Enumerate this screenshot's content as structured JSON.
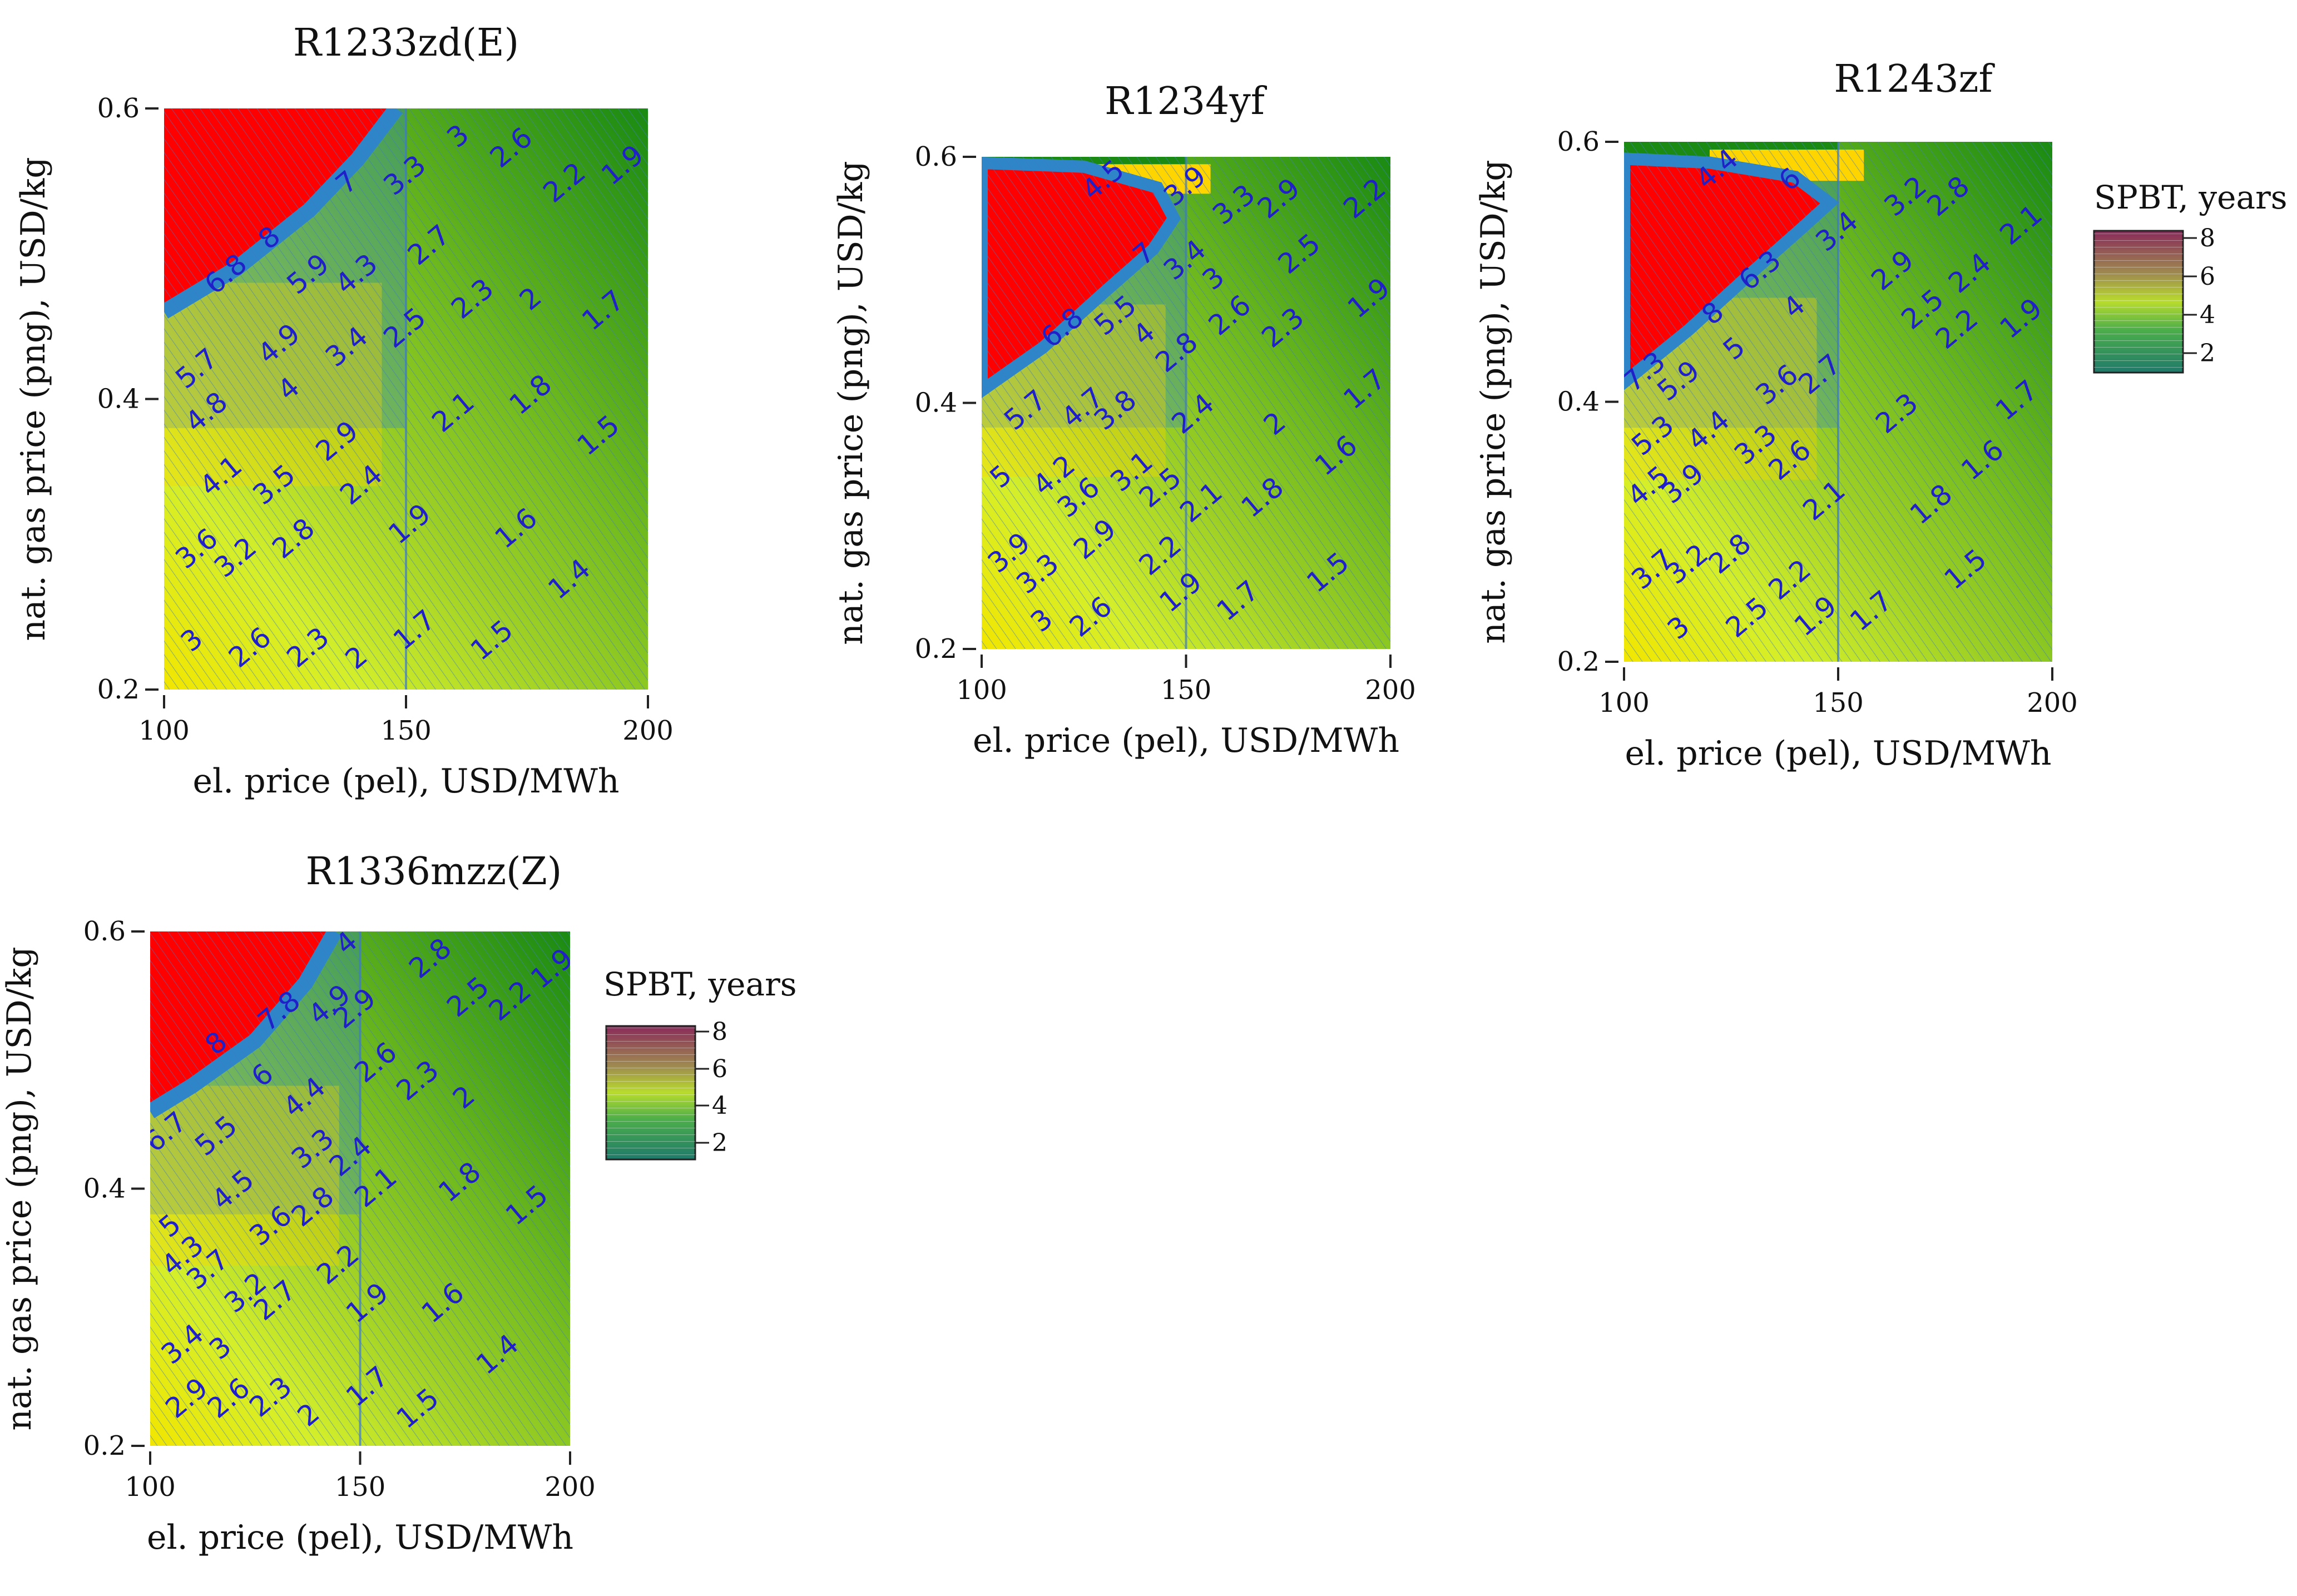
{
  "figure": {
    "colors": {
      "red_region": "#ff0000",
      "blue_band": "#2e86c8",
      "yellow": "#ffd500",
      "lime": "#d4ef2a",
      "green_mid": "#86c322",
      "green_dark": "#1a8a12",
      "contour_label": "#2020c8",
      "contour_line": "#3c78c8"
    }
  },
  "chart_data": [
    {
      "type": "contour",
      "title": "R1233zd(E)",
      "xlabel": "el. price (pel), USD/MWh",
      "ylabel": "nat. gas price (png), USD/kg",
      "xlim": [
        100,
        200
      ],
      "ylim": [
        0.2,
        0.6
      ],
      "xticks": [
        "100",
        "150",
        "200"
      ],
      "yticks": [
        "0.2",
        "0.4",
        "0.6"
      ],
      "red_boundary": [
        [
          100,
          0.46
        ],
        [
          115,
          0.49
        ],
        [
          130,
          0.53
        ],
        [
          140,
          0.565
        ],
        [
          148,
          0.6
        ]
      ],
      "contour_labels": [
        {
          "text": "7",
          "x": 138,
          "y": 0.548
        },
        {
          "text": "8",
          "x": 122,
          "y": 0.51
        },
        {
          "text": "6.8",
          "x": 113,
          "y": 0.485
        },
        {
          "text": "5.9",
          "x": 130,
          "y": 0.485
        },
        {
          "text": "4.3",
          "x": 140,
          "y": 0.485
        },
        {
          "text": "5.7",
          "x": 107,
          "y": 0.42
        },
        {
          "text": "4.9",
          "x": 124,
          "y": 0.437
        },
        {
          "text": "3.4",
          "x": 138,
          "y": 0.435
        },
        {
          "text": "4.8",
          "x": 109,
          "y": 0.39
        },
        {
          "text": "4",
          "x": 126,
          "y": 0.406
        },
        {
          "text": "4.1",
          "x": 112,
          "y": 0.346
        },
        {
          "text": "3.5",
          "x": 123,
          "y": 0.34
        },
        {
          "text": "2.9",
          "x": 136,
          "y": 0.37
        },
        {
          "text": "3.6",
          "x": 107,
          "y": 0.296
        },
        {
          "text": "3.2",
          "x": 115,
          "y": 0.29
        },
        {
          "text": "2.8",
          "x": 127,
          "y": 0.303
        },
        {
          "text": "2.4",
          "x": 141,
          "y": 0.34
        },
        {
          "text": "3",
          "x": 106,
          "y": 0.233
        },
        {
          "text": "2.6",
          "x": 118,
          "y": 0.228
        },
        {
          "text": "2.3",
          "x": 130,
          "y": 0.228
        },
        {
          "text": "2",
          "x": 140,
          "y": 0.221
        },
        {
          "text": "3.3",
          "x": 150,
          "y": 0.553
        },
        {
          "text": "3",
          "x": 161,
          "y": 0.58
        },
        {
          "text": "2.6",
          "x": 172,
          "y": 0.572
        },
        {
          "text": "2.2",
          "x": 183,
          "y": 0.548
        },
        {
          "text": "1.9",
          "x": 195,
          "y": 0.56
        },
        {
          "text": "2.7",
          "x": 155,
          "y": 0.505
        },
        {
          "text": "2.3",
          "x": 164,
          "y": 0.468
        },
        {
          "text": "2",
          "x": 176,
          "y": 0.468
        },
        {
          "text": "1.7",
          "x": 191,
          "y": 0.46
        },
        {
          "text": "2.5",
          "x": 150,
          "y": 0.448
        },
        {
          "text": "2.1",
          "x": 160,
          "y": 0.39
        },
        {
          "text": "1.8",
          "x": 176,
          "y": 0.402
        },
        {
          "text": "1.5",
          "x": 190,
          "y": 0.374
        },
        {
          "text": "1.9",
          "x": 151,
          "y": 0.313
        },
        {
          "text": "1.6",
          "x": 173,
          "y": 0.31
        },
        {
          "text": "1.4",
          "x": 184,
          "y": 0.275
        },
        {
          "text": "1.7",
          "x": 152,
          "y": 0.24
        },
        {
          "text": "1.5",
          "x": 168,
          "y": 0.233
        }
      ]
    },
    {
      "type": "contour",
      "title": "R1234yf",
      "xlabel": "el. price (pel), USD/MWh",
      "ylabel": "nat. gas price (png), USD/kg",
      "xlim": [
        100,
        200
      ],
      "ylim": [
        0.2,
        0.6
      ],
      "xticks": [
        "100",
        "150",
        "200"
      ],
      "yticks": [
        "0.2",
        "0.4",
        "0.6"
      ],
      "red_boundary": [
        [
          100,
          0.41
        ],
        [
          115,
          0.445
        ],
        [
          130,
          0.49
        ],
        [
          142,
          0.525
        ],
        [
          147,
          0.55
        ],
        [
          143,
          0.575
        ],
        [
          125,
          0.592
        ],
        [
          100,
          0.595
        ]
      ],
      "contour_labels": [
        {
          "text": "4.5",
          "x": 130,
          "y": 0.58
        },
        {
          "text": "3.9",
          "x": 150,
          "y": 0.575
        },
        {
          "text": "7",
          "x": 140,
          "y": 0.52
        },
        {
          "text": "3.4",
          "x": 150,
          "y": 0.515
        },
        {
          "text": "6.8",
          "x": 120,
          "y": 0.46
        },
        {
          "text": "5.5",
          "x": 133,
          "y": 0.47
        },
        {
          "text": "4",
          "x": 140,
          "y": 0.455
        },
        {
          "text": "2.8",
          "x": 148,
          "y": 0.44
        },
        {
          "text": "5.7",
          "x": 111,
          "y": 0.393
        },
        {
          "text": "4.7",
          "x": 125,
          "y": 0.395
        },
        {
          "text": "3.8",
          "x": 133,
          "y": 0.393
        },
        {
          "text": "5",
          "x": 105,
          "y": 0.339
        },
        {
          "text": "4.2",
          "x": 118,
          "y": 0.34
        },
        {
          "text": "3.1",
          "x": 137,
          "y": 0.343
        },
        {
          "text": "3.6",
          "x": 124,
          "y": 0.322
        },
        {
          "text": "2.5",
          "x": 144,
          "y": 0.33
        },
        {
          "text": "3.9",
          "x": 107,
          "y": 0.277
        },
        {
          "text": "3.3",
          "x": 114,
          "y": 0.26
        },
        {
          "text": "2.9",
          "x": 128,
          "y": 0.288
        },
        {
          "text": "2.2",
          "x": 144,
          "y": 0.275
        },
        {
          "text": "3",
          "x": 115,
          "y": 0.222
        },
        {
          "text": "2.6",
          "x": 127,
          "y": 0.225
        },
        {
          "text": "1.9",
          "x": 149,
          "y": 0.245
        },
        {
          "text": "3.3",
          "x": 162,
          "y": 0.56
        },
        {
          "text": "2.9",
          "x": 173,
          "y": 0.565
        },
        {
          "text": "2.2",
          "x": 194,
          "y": 0.565
        },
        {
          "text": "3",
          "x": 157,
          "y": 0.5
        },
        {
          "text": "2.5",
          "x": 178,
          "y": 0.52
        },
        {
          "text": "2.6",
          "x": 161,
          "y": 0.47
        },
        {
          "text": "2.3",
          "x": 174,
          "y": 0.46
        },
        {
          "text": "1.9",
          "x": 195,
          "y": 0.484
        },
        {
          "text": "2.4",
          "x": 152,
          "y": 0.39
        },
        {
          "text": "2",
          "x": 172,
          "y": 0.382
        },
        {
          "text": "1.7",
          "x": 194,
          "y": 0.41
        },
        {
          "text": "2.1",
          "x": 154,
          "y": 0.318
        },
        {
          "text": "1.8",
          "x": 169,
          "y": 0.322
        },
        {
          "text": "1.6",
          "x": 187,
          "y": 0.356
        },
        {
          "text": "1.7",
          "x": 163,
          "y": 0.238
        },
        {
          "text": "1.5",
          "x": 185,
          "y": 0.261
        }
      ]
    },
    {
      "type": "contour",
      "title": "R1243zf",
      "xlabel": "el. price (pel), USD/MWh",
      "ylabel": "nat. gas price (png), USD/kg",
      "xlim": [
        100,
        200
      ],
      "ylim": [
        0.2,
        0.6
      ],
      "xticks": [
        "100",
        "150",
        "200"
      ],
      "yticks": [
        "0.2",
        "0.4",
        "0.6"
      ],
      "red_boundary": [
        [
          100,
          0.415
        ],
        [
          115,
          0.455
        ],
        [
          130,
          0.5
        ],
        [
          142,
          0.535
        ],
        [
          148,
          0.553
        ],
        [
          140,
          0.573
        ],
        [
          120,
          0.584
        ],
        [
          100,
          0.587
        ]
      ],
      "contour_labels": [
        {
          "text": "4.4",
          "x": 122,
          "y": 0.578
        },
        {
          "text": "6",
          "x": 139,
          "y": 0.57
        },
        {
          "text": "3.4",
          "x": 150,
          "y": 0.53
        },
        {
          "text": "8",
          "x": 121,
          "y": 0.467
        },
        {
          "text": "6.3",
          "x": 132,
          "y": 0.5
        },
        {
          "text": "4",
          "x": 140,
          "y": 0.472
        },
        {
          "text": "7.3",
          "x": 105,
          "y": 0.422
        },
        {
          "text": "5.9",
          "x": 113,
          "y": 0.415
        },
        {
          "text": "5",
          "x": 126,
          "y": 0.44
        },
        {
          "text": "3.6",
          "x": 136,
          "y": 0.412
        },
        {
          "text": "2.7",
          "x": 146,
          "y": 0.42
        },
        {
          "text": "5.3",
          "x": 107,
          "y": 0.373
        },
        {
          "text": "4.4",
          "x": 120,
          "y": 0.377
        },
        {
          "text": "3.3",
          "x": 131,
          "y": 0.366
        },
        {
          "text": "4.5",
          "x": 106,
          "y": 0.334
        },
        {
          "text": "3.9",
          "x": 114,
          "y": 0.336
        },
        {
          "text": "2.6",
          "x": 139,
          "y": 0.354
        },
        {
          "text": "2.1",
          "x": 147,
          "y": 0.323
        },
        {
          "text": "3.7",
          "x": 107,
          "y": 0.27
        },
        {
          "text": "3.2",
          "x": 115,
          "y": 0.274
        },
        {
          "text": "2.8",
          "x": 125,
          "y": 0.282
        },
        {
          "text": "2.2",
          "x": 139,
          "y": 0.262
        },
        {
          "text": "3",
          "x": 113,
          "y": 0.225
        },
        {
          "text": "2.5",
          "x": 129,
          "y": 0.233
        },
        {
          "text": "1.9",
          "x": 145,
          "y": 0.234
        },
        {
          "text": "3.2",
          "x": 166,
          "y": 0.557
        },
        {
          "text": "2.8",
          "x": 176,
          "y": 0.557
        },
        {
          "text": "2.1",
          "x": 193,
          "y": 0.535
        },
        {
          "text": "2.9",
          "x": 163,
          "y": 0.5
        },
        {
          "text": "2.4",
          "x": 181,
          "y": 0.498
        },
        {
          "text": "1.9",
          "x": 193,
          "y": 0.463
        },
        {
          "text": "2.5",
          "x": 170,
          "y": 0.47
        },
        {
          "text": "2.2",
          "x": 178,
          "y": 0.455
        },
        {
          "text": "2.3",
          "x": 164,
          "y": 0.39
        },
        {
          "text": "1.7",
          "x": 192,
          "y": 0.4
        },
        {
          "text": "1.6",
          "x": 184,
          "y": 0.354
        },
        {
          "text": "1.8",
          "x": 172,
          "y": 0.32
        },
        {
          "text": "1.7",
          "x": 158,
          "y": 0.238
        },
        {
          "text": "1.5",
          "x": 180,
          "y": 0.27
        }
      ]
    },
    {
      "type": "contour",
      "title": "R1336mzz(Z)",
      "xlabel": "el. price (pel), USD/MWh",
      "ylabel": "nat. gas price (png), USD/kg",
      "xlim": [
        100,
        200
      ],
      "ylim": [
        0.2,
        0.6
      ],
      "xticks": [
        "100",
        "150",
        "200"
      ],
      "yticks": [
        "0.2",
        "0.4",
        "0.6"
      ],
      "red_boundary": [
        [
          100,
          0.46
        ],
        [
          110,
          0.48
        ],
        [
          125,
          0.515
        ],
        [
          137,
          0.56
        ],
        [
          144,
          0.6
        ]
      ],
      "contour_labels": [
        {
          "text": "4",
          "x": 147,
          "y": 0.59
        },
        {
          "text": "7.8",
          "x": 131,
          "y": 0.537
        },
        {
          "text": "4.9",
          "x": 143,
          "y": 0.542
        },
        {
          "text": "2.9",
          "x": 149,
          "y": 0.539
        },
        {
          "text": "8",
          "x": 116,
          "y": 0.512
        },
        {
          "text": "6",
          "x": 127,
          "y": 0.487
        },
        {
          "text": "4.4",
          "x": 137,
          "y": 0.47
        },
        {
          "text": "2.6",
          "x": 154,
          "y": 0.497
        },
        {
          "text": "6.7",
          "x": 104,
          "y": 0.443
        },
        {
          "text": "5.5",
          "x": 116,
          "y": 0.44
        },
        {
          "text": "3.3",
          "x": 139,
          "y": 0.43
        },
        {
          "text": "4.5",
          "x": 120,
          "y": 0.398
        },
        {
          "text": "5",
          "x": 105,
          "y": 0.37
        },
        {
          "text": "3.6",
          "x": 129,
          "y": 0.37
        },
        {
          "text": "2.8",
          "x": 139,
          "y": 0.385
        },
        {
          "text": "2.4",
          "x": 148,
          "y": 0.424
        },
        {
          "text": "4.3",
          "x": 108,
          "y": 0.347
        },
        {
          "text": "3.7",
          "x": 114,
          "y": 0.336
        },
        {
          "text": "3.2",
          "x": 123,
          "y": 0.318
        },
        {
          "text": "2.7",
          "x": 130,
          "y": 0.312
        },
        {
          "text": "2.2",
          "x": 145,
          "y": 0.34
        },
        {
          "text": "3.4",
          "x": 108,
          "y": 0.278
        },
        {
          "text": "3",
          "x": 117,
          "y": 0.275
        },
        {
          "text": "2.9",
          "x": 109,
          "y": 0.236
        },
        {
          "text": "2.6",
          "x": 119,
          "y": 0.236
        },
        {
          "text": "2.3",
          "x": 129,
          "y": 0.237
        },
        {
          "text": "2",
          "x": 138,
          "y": 0.223
        },
        {
          "text": "2.8",
          "x": 167,
          "y": 0.578
        },
        {
          "text": "2.5",
          "x": 176,
          "y": 0.548
        },
        {
          "text": "2.2",
          "x": 186,
          "y": 0.545
        },
        {
          "text": "1.9",
          "x": 196,
          "y": 0.57
        },
        {
          "text": "2.3",
          "x": 164,
          "y": 0.483
        },
        {
          "text": "2",
          "x": 175,
          "y": 0.47
        },
        {
          "text": "1.8",
          "x": 174,
          "y": 0.404
        },
        {
          "text": "1.5",
          "x": 190,
          "y": 0.386
        },
        {
          "text": "2.1",
          "x": 154,
          "y": 0.4
        },
        {
          "text": "1.9",
          "x": 152,
          "y": 0.31
        },
        {
          "text": "1.6",
          "x": 170,
          "y": 0.31
        },
        {
          "text": "1.4",
          "x": 183,
          "y": 0.27
        },
        {
          "text": "1.7",
          "x": 152,
          "y": 0.245
        },
        {
          "text": "1.5",
          "x": 164,
          "y": 0.228
        }
      ]
    }
  ],
  "legends": [
    {
      "title": "SPBT, years",
      "ticks": [
        "2",
        "4",
        "6",
        "8"
      ]
    },
    {
      "title": "SPBT, years",
      "ticks": [
        "2",
        "4",
        "6",
        "8"
      ]
    }
  ]
}
